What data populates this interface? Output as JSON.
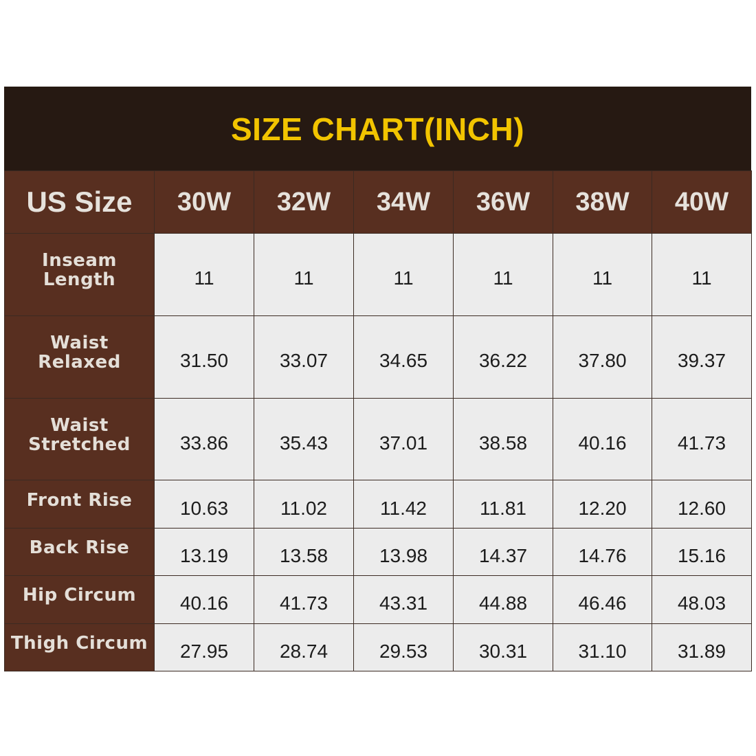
{
  "title": "SIZE CHART(INCH)",
  "header": {
    "label": "US Size",
    "sizes": [
      "30W",
      "32W",
      "34W",
      "36W",
      "38W",
      "40W"
    ]
  },
  "rows": [
    {
      "label": "Inseam\nLength",
      "values": [
        "11",
        "11",
        "11",
        "11",
        "11",
        "11"
      ]
    },
    {
      "label": "Waist\nRelaxed",
      "values": [
        "31.50",
        "33.07",
        "34.65",
        "36.22",
        "37.80",
        "39.37"
      ]
    },
    {
      "label": "Waist\nStretched",
      "values": [
        "33.86",
        "35.43",
        "37.01",
        "38.58",
        "40.16",
        "41.73"
      ]
    },
    {
      "label": "Front Rise",
      "values": [
        "10.63",
        "11.02",
        "11.42",
        "11.81",
        "12.20",
        "12.60"
      ]
    },
    {
      "label": "Back Rise",
      "values": [
        "13.19",
        "13.58",
        "13.98",
        "14.37",
        "14.76",
        "15.16"
      ]
    },
    {
      "label": "Hip Circum",
      "values": [
        "40.16",
        "41.73",
        "43.31",
        "44.88",
        "46.46",
        "48.03"
      ]
    },
    {
      "label": "Thigh Circum",
      "values": [
        "27.95",
        "28.74",
        "29.53",
        "30.31",
        "31.10",
        "31.89"
      ]
    }
  ],
  "colors": {
    "title_bg": "#261912",
    "title_text": "#f2c400",
    "header_bg": "#582f20",
    "header_text": "#e6e2dc",
    "cell_bg": "#ececec",
    "cell_text": "#1c1c1c",
    "border": "#3b2a22"
  }
}
